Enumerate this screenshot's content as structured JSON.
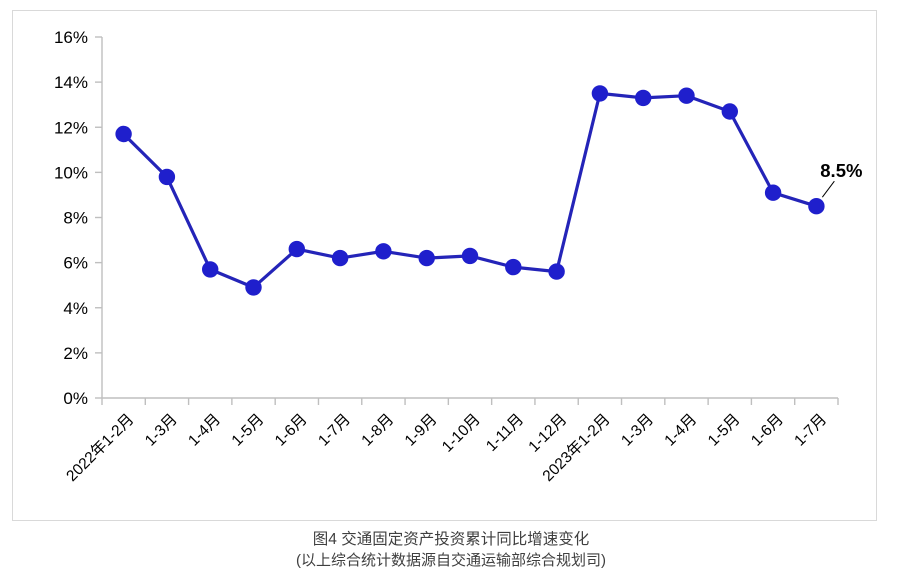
{
  "chart_data": {
    "type": "line",
    "title": "图4  交通固定资产投资累计同比增速变化",
    "source_note": "(以上综合统计数据源自交通运输部综合规划司)",
    "xlabel": "",
    "ylabel": "",
    "categories": [
      "2022年1-2月",
      "1-3月",
      "1-4月",
      "1-5月",
      "1-6月",
      "1-7月",
      "1-8月",
      "1-9月",
      "1-10月",
      "1-11月",
      "1-12月",
      "2023年1-2月",
      "1-3月",
      "1-4月",
      "1-5月",
      "1-6月",
      "1-7月"
    ],
    "series": [
      {
        "name": "交通固定资产投资累计同比增速",
        "values": [
          11.7,
          9.8,
          5.7,
          4.9,
          6.6,
          6.2,
          6.5,
          6.2,
          6.3,
          5.8,
          5.6,
          13.5,
          13.3,
          13.4,
          12.7,
          9.1,
          8.5
        ]
      }
    ],
    "ylim": [
      0,
      16
    ],
    "y_tick_step": 2,
    "y_tick_labels": [
      "0%",
      "2%",
      "4%",
      "6%",
      "8%",
      "10%",
      "12%",
      "14%",
      "16%"
    ],
    "grid": false,
    "legend_position": "none",
    "annotation": {
      "label": "8.5%",
      "point_index": 16
    },
    "colors": {
      "line": "#2424b8",
      "marker": "#1f1fcc",
      "axis": "#bfbfbf",
      "tick_label": "#000000",
      "annotation": "#000000",
      "frame_border": "#d9d9d9",
      "caption": "#3f3f3f"
    }
  }
}
